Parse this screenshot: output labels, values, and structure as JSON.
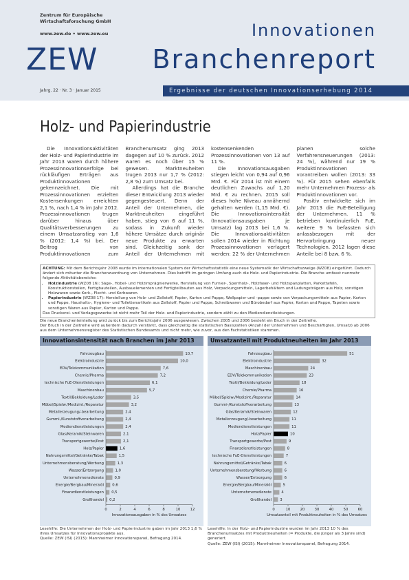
{
  "header": {
    "org": "Zentrum für Europäische Wirtschaftsforschung GmbH",
    "web": "www.zew.de • www.zew.eu",
    "logo": "ZEW",
    "series": "Innovationen",
    "title": "Branchenreport",
    "issue": "Jahrg. 22 · Nr. 3 · Januar 2015",
    "subtitle": "Ergebnisse der deutschen Innovationserhebung 2014"
  },
  "title": "Holz- und Papierindustrie",
  "body": [
    "Die Innovationsaktivitäten der Holz- und Papierindustrie im Jahr 2013 waren durch höhere Prozessinnovationserfolge bei rückläufigen Erträgen aus Produktinnovationen gekennzeichnet. Die mit Prozessinnovationen erzielten Kostensenkungen erreichten 2,1 %, nach 1,4 % im Jahr 2012. Prozessinnovationen trugen darüber hinaus über Qualitätsverbesserungen zu einem Umsatzanstieg von 1,6 % (2012: 1,4 %) bei. Der Beitrag von Produktinnovationen zum Branchenumsatz ging 2013 dagegen auf 10 % zurück. 2012 waren es noch über 15 % gewesen. Marktneuheiten trugen 2013 nur 1,7 % (2012: 2,8 %) zum Umsatz bei.",
    "Allerdings hat die Branche dieser Entwicklung 2013 wieder gegengesteuert. Denn der Anteil der Unternehmen, die Marktneuheiten eingeführt haben, stieg von 6 auf 11 %, sodass in Zukunft wieder höhere Umsätze durch originär neue Produkte zu erwarten sind. Gleichzeitig sank der Anteil der Unternehmen mit kostensenkenden Prozessinnovationen von 13 auf 11 %.",
    "Die Innovationsausgaben stiegen leicht von 0,94 auf 0,96 Mrd. €. Für 2014 ist mit einem deutlichen Zuwachs auf 1,20 Mrd. € zu rechnen. 2015 soll dieses hohe Niveau annähernd gehalten werden (1,15 Mrd. €). Die Innovationsintensität (Innovationsausgaben je Umsatz) lag 2013 bei 1,6 %. Die Innovationsaktivitäten sollen 2014 wieder in Richtung Prozessinnovationen verlagert werden: 22 % der Unternehmen planen solche Verfahrensneuerungen (2013: 24 %), während nur 19 % Produktinnovationen vorantreiben wollen (2013: 33 %). Für 2015 sehen ebenfalls mehr Unternehmen Prozess- als Produktinnovationen vor.",
    "Positiv entwickelte sich im Jahr 2013 die FuE-Beteiligung der Unternehmen. 11 % betrieben kontinuierlich FuE, weitere 9 % befassten sich anlassbezogen mit der Hervorbringung neuer Technologien. 2012 lagen diese Anteile bei 8 bzw. 6 %."
  ],
  "notice": {
    "label": "ACHTUNG:",
    "text": "Mit dem Berichtsjahr 2008 wurde im internationalen System der Wirtschaftsstatistik eine neue Systematik der Wirtschaftszweige (WZ08) eingeführt. Dadurch ändert sich mitunter die Branchenzuordnung von Unternehmen. Dies betrifft im geringen Umfang auch die Holz- und Papierindustrie. Die Branche umfasst nunmehr folgende Aktivitätsbereiche:",
    "items": [
      {
        "label": "Holzindustrie",
        "text": "(WZ08 16): Säge-, Hobel- und Holzimprägnierwerke, Herstellung von Furnier-, Sperrholz-, Holzfaser- und Holzspanplatten, Parkettafeln, Konstruktionsteilen, Fertigbauteilen, Ausbauelementen und Fertigteilbauten aus Holz, Verpackungsmitteln, Lagerbehältern und Ladungsträgern aus Holz, sonstigen Holzwaren sowie Kork-, Flecht- und Korbwaren."
      },
      {
        "label": "Papierindustrie",
        "text": "(WZ08 17): Herstellung von Holz- und Zellstoff, Papier, Karton und Pappe, Wellpapier und -pappe sowie von Verpackungsmitteln aus Papier, Karton und Pappe, Haushalts-, Hygiene- und Toilettenartikeln aus Zellstoff, Papier und Pappe, Schreibwaren und Bürobedarf aus Papier, Karton und Pappe, Tapeten sowie sonstigen Waren aus Papier, Karton und Pappe."
      }
    ],
    "after": "Das Druckerei- und Verlagsgewerbe ist nicht mehr Teil der Holz- und Papierindustrie, sondern zählt zu den Mediendienstleistungen."
  },
  "remarks": [
    "Die neue Branchenteinteilung wird zurück bis zum Berichtsjahr 2006 ausgewiesen. Zwischen 2005 und 2006 besteht ein Bruch in der Zeitreihe.",
    "Der Bruch in der Zeitreihe wird außerdem dadurch verstärkt, dass gleichzeitig die statistischen Basiszahlen (Anzahl der Unternehmen und Beschäftigten, Umsatz) ab 2006 aus dem Unternehmensregister des Statistischen Bundesamts und nicht mehr, wie zuvor, aus den Fachstatistiken stammen."
  ],
  "chart_data": [
    {
      "type": "barh",
      "title": "Innovationsintensität nach Branchen im Jahr 2013",
      "xlabel": "Innovationsausgaben in % des Umsatzes",
      "categories": [
        "Fahrzeugbau",
        "Elektroindustrie",
        "EDV/Telekommunikation",
        "Chemie/Pharma",
        "technische FuE-Dienstleistungen",
        "Maschinenbau",
        "Textil/Bekleidung/Leder",
        "Möbel/Spielw./Medizint./Reparatur",
        "Metallerzeugung/-bearbeitung",
        "Gummi-/Kunststoffverarbeitung",
        "Mediendienstleistungen",
        "Glas/Keramik/Steinwaren",
        "Transportgewerbe/Post",
        "Holz/Papier",
        "Nahrungsmittel/Getränke/Tabak",
        "Unternehmensberatung/Werbung",
        "Wasser/Entsorgung",
        "Unternehmensdienste",
        "Energie/Bergbau/Mineralöl",
        "Finanzdienstleistungen",
        "Großhandel"
      ],
      "values": [
        10.7,
        10.0,
        7.6,
        7.2,
        6.1,
        5.7,
        3.5,
        3.2,
        2.4,
        2.4,
        2.4,
        2.1,
        2.1,
        1.6,
        1.5,
        1.3,
        1.0,
        0.9,
        0.6,
        0.5,
        0.2
      ],
      "value_labels": [
        "10,7",
        "10,0",
        "7,6",
        "7,2",
        "6,1",
        "5,7",
        "3,5",
        "3,2",
        "2,4",
        "2,4",
        "2,4",
        "2,1",
        "2,1",
        "1,6",
        "1,5",
        "1,3",
        "1,0",
        "0,9",
        "0,6",
        "0,5",
        "0,2"
      ],
      "colors": [
        "#a6a6a6",
        "#a6a6a6",
        "#a6a6a6",
        "#a6a6a6",
        "#a6a6a6",
        "#a6a6a6",
        "#a6a6a6",
        "#a6a6a6",
        "#a6a6a6",
        "#a6a6a6",
        "#a6a6a6",
        "#a6a6a6",
        "#a6a6a6",
        "#000000",
        "#a6a6a6",
        "#a6a6a6",
        "#a6a6a6",
        "#a6a6a6",
        "#a6a6a6",
        "#a6a6a6",
        "#a6a6a6"
      ],
      "xlim": [
        0,
        12
      ],
      "xticks": [
        0,
        2,
        4,
        6,
        8,
        10,
        12
      ],
      "caption": "Lesehilfe: Die Unternehmen der Holz- und Papierindustrie gaben im Jahr 2013 1,6 % ihres Umsatzes für Innovationsprojekte aus.",
      "source": "Quelle: ZEW (ISI) (2015): Mannheimer Innovationspanel, Befragung 2014."
    },
    {
      "type": "barh",
      "title": "Umsatzanteil mit Produktneuheiten im Jahr 2013",
      "xlabel": "Umsatzanteil mit Produktneuheiten in % des Umsatzes",
      "categories": [
        "Fahrzeugbau",
        "Elektroindustrie",
        "Maschinenbau",
        "EDV/Telekommunikation",
        "Textil/Bekleidung/Leder",
        "Chemie/Pharma",
        "Möbel/Spielw./Medizint./Reparatur",
        "Gummi-/Kunststoffverarbeitung",
        "Glas/Keramik/Steinwaren",
        "Metallerzeugung/-bearbeitung",
        "Mediendienstleistungen",
        "Holz/Papier",
        "Transportgewerbe/Post",
        "Finanzdienstleistungen",
        "technische FuE-Dienstleistungen",
        "Nahrungsmittel/Getränke/Tabak",
        "Unternehmensberatung/Werbung",
        "Wasser/Entsorgung",
        "Energie/Bergbau/Mineralöl",
        "Unternehmensdienste",
        "Großhandel"
      ],
      "values": [
        51,
        32,
        24,
        23,
        18,
        16,
        14,
        13,
        12,
        11,
        11,
        10,
        9,
        8,
        7,
        6,
        6,
        6,
        5,
        4,
        3
      ],
      "colors": [
        "#a6a6a6",
        "#a6a6a6",
        "#a6a6a6",
        "#a6a6a6",
        "#a6a6a6",
        "#a6a6a6",
        "#a6a6a6",
        "#a6a6a6",
        "#a6a6a6",
        "#a6a6a6",
        "#a6a6a6",
        "#000000",
        "#a6a6a6",
        "#a6a6a6",
        "#a6a6a6",
        "#a6a6a6",
        "#a6a6a6",
        "#a6a6a6",
        "#a6a6a6",
        "#a6a6a6",
        "#a6a6a6"
      ],
      "xlim": [
        0,
        60
      ],
      "xticks": [
        0,
        10,
        20,
        30,
        40,
        50,
        60
      ],
      "caption": "Lesehilfe: In der Holz- und Papierindustrie wurden im Jahr 2013 10 % des Branchenumsatzes mit Produktneuheiten (= Produkte, die jünger als 3 Jahre sind) generiert.",
      "source": "Quelle: ZEW (ISI) (2015): Mannheimer Innovationspanel, Befragung 2014."
    }
  ]
}
